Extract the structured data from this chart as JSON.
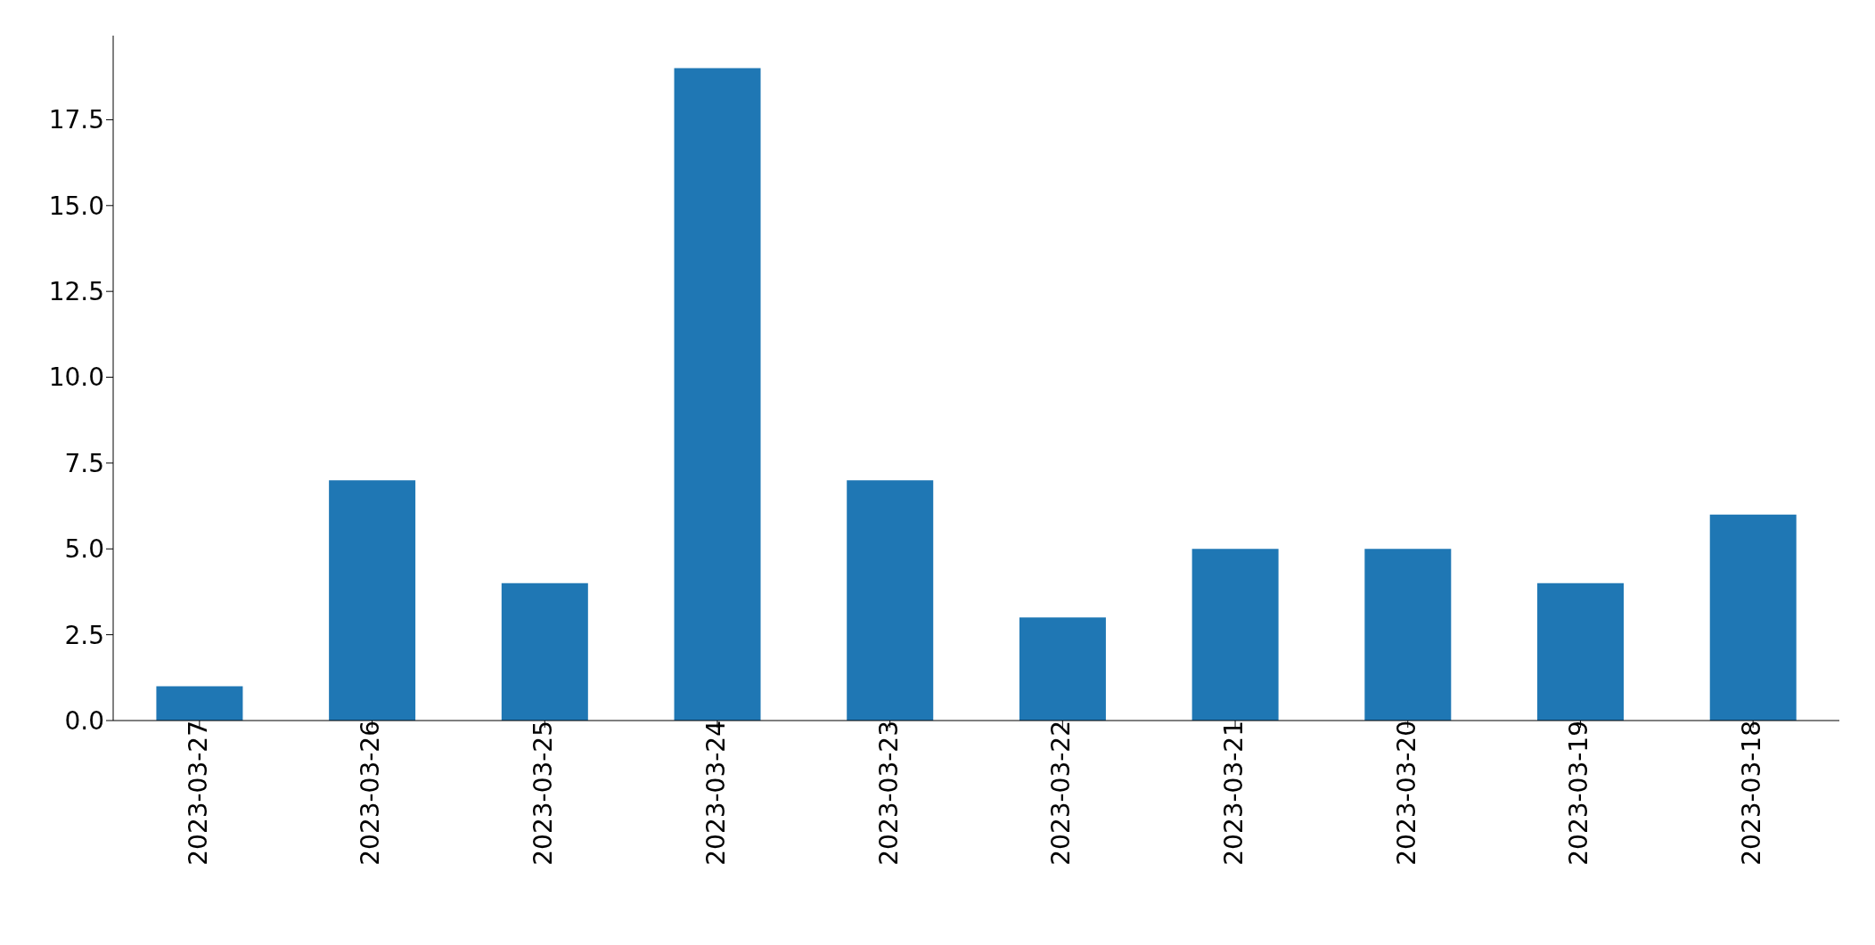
{
  "chart_data": {
    "type": "bar",
    "categories": [
      "2023-03-27",
      "2023-03-26",
      "2023-03-25",
      "2023-03-24",
      "2023-03-23",
      "2023-03-22",
      "2023-03-21",
      "2023-03-20",
      "2023-03-19",
      "2023-03-18"
    ],
    "values": [
      1,
      7,
      4,
      19,
      7,
      3,
      5,
      5,
      4,
      6
    ],
    "color": "#1f77b4",
    "ylim": [
      0,
      19.95
    ],
    "yticks": [
      {
        "value": 0,
        "label": "0.0"
      },
      {
        "value": 2.5,
        "label": "2.5"
      },
      {
        "value": 5,
        "label": "5.0"
      },
      {
        "value": 7.5,
        "label": "7.5"
      },
      {
        "value": 10,
        "label": "10.0"
      },
      {
        "value": 12.5,
        "label": "12.5"
      },
      {
        "value": 15,
        "label": "15.0"
      },
      {
        "value": 17.5,
        "label": "17.5"
      }
    ],
    "grid": false,
    "legend": false
  }
}
